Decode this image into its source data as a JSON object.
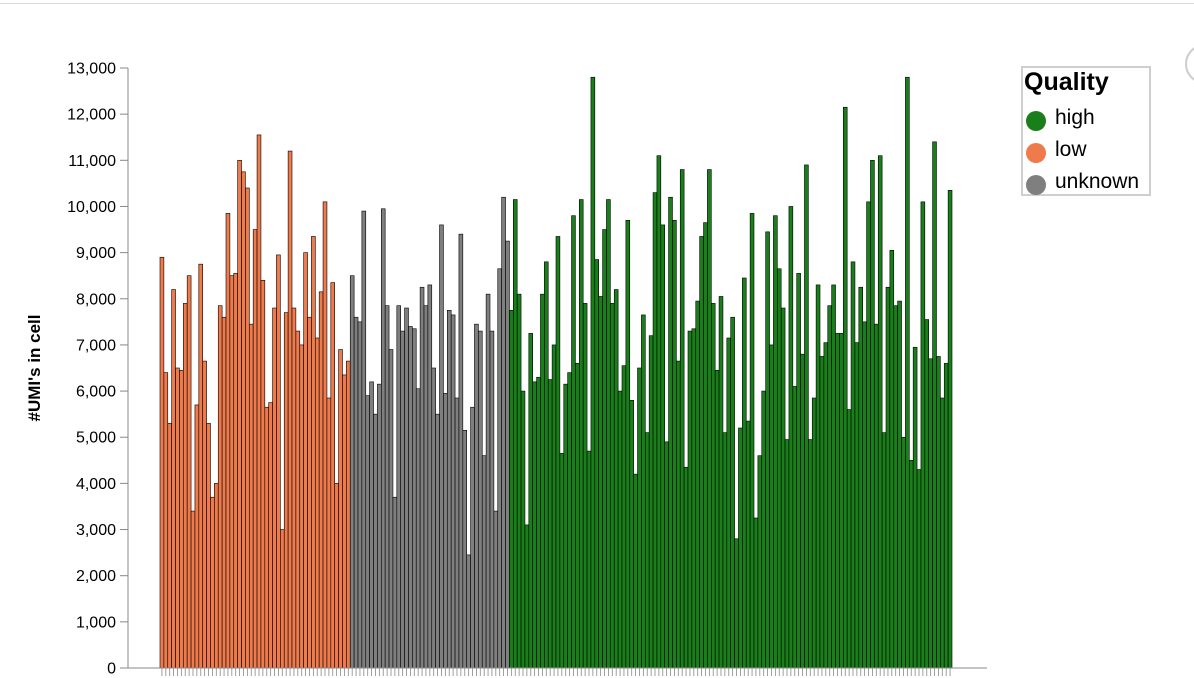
{
  "chart_data": {
    "type": "bar",
    "ylabel": "#UMI's in cell",
    "ylim": [
      0,
      13000
    ],
    "y_ticks": [
      "0",
      "1,000",
      "2,000",
      "3,000",
      "4,000",
      "5,000",
      "6,000",
      "7,000",
      "8,000",
      "9,000",
      "10,000",
      "11,000",
      "12,000",
      "13,000"
    ],
    "y_tick_values": [
      0,
      1000,
      2000,
      3000,
      4000,
      5000,
      6000,
      7000,
      8000,
      9000,
      10000,
      11000,
      12000,
      13000
    ],
    "x_tick_labels_visible": false,
    "grid": false,
    "legend_position": "top-right",
    "colors": {
      "high": "#1a7f1a",
      "low": "#ef7a4b",
      "unknown": "#7f7f7f"
    },
    "series": [
      {
        "name": "low",
        "values": [
          8900,
          6400,
          5300,
          8200,
          6500,
          6450,
          7900,
          8500,
          3400,
          5700,
          8750,
          6650,
          5300,
          3700,
          4000,
          7850,
          7600,
          9850,
          8500,
          8550,
          11000,
          10750,
          10400,
          7450,
          9500,
          11550,
          8400,
          5650,
          5750,
          7800,
          8950,
          3000,
          7700,
          11200,
          7800,
          7300,
          7000,
          9000,
          7600,
          9350,
          7150,
          8150,
          10100,
          5850,
          8350,
          4000,
          6900,
          6350,
          6650
        ]
      },
      {
        "name": "unknown",
        "values": [
          8500,
          7600,
          7500,
          9900,
          5900,
          6200,
          5500,
          6150,
          9950,
          7850,
          6900,
          3700,
          7850,
          7300,
          7800,
          7400,
          7350,
          6050,
          8250,
          7850,
          8300,
          6500,
          5500,
          9600,
          5950,
          7750,
          7650,
          5850,
          9400,
          5150,
          2450,
          5650,
          7450,
          7300,
          4600,
          8100,
          7300,
          3400,
          8650,
          10200,
          9250
        ]
      },
      {
        "name": "high",
        "values": [
          7750,
          10150,
          8100,
          6000,
          3100,
          7250,
          6200,
          6300,
          8100,
          8800,
          6250,
          7000,
          9350,
          4650,
          6150,
          6400,
          9800,
          6600,
          10150,
          7900,
          4700,
          12800,
          8850,
          8050,
          9500,
          10150,
          7900,
          8200,
          6000,
          6550,
          9700,
          5800,
          4200,
          6500,
          7650,
          5100,
          7200,
          10300,
          11100,
          9600,
          4900,
          10200,
          9700,
          6650,
          10800,
          4350,
          7300,
          7350,
          7950,
          9350,
          9650,
          10800,
          7900,
          6450,
          8050,
          5100,
          7150,
          7600,
          2800,
          5200,
          8450,
          5350,
          9850,
          3250,
          4600,
          6000,
          9450,
          7000,
          9800,
          8650,
          7800,
          4950,
          10000,
          6100,
          8550,
          6800,
          10900,
          4950,
          5850,
          8300,
          6750,
          7050,
          7850,
          8300,
          7250,
          7250,
          12150,
          5600,
          8800,
          7050,
          8250,
          7500,
          10100,
          11000,
          7450,
          11100,
          5100,
          8250,
          9050,
          7850,
          7950,
          5000,
          12800,
          4500,
          6950,
          4300,
          10100,
          7550,
          6700,
          11400,
          6750,
          5850,
          6600,
          10350
        ]
      }
    ]
  },
  "legend": {
    "title": "Quality",
    "items": [
      {
        "label": "high",
        "color": "#1a7f1a"
      },
      {
        "label": "low",
        "color": "#ef7a4b"
      },
      {
        "label": "unknown",
        "color": "#7f7f7f"
      }
    ]
  }
}
